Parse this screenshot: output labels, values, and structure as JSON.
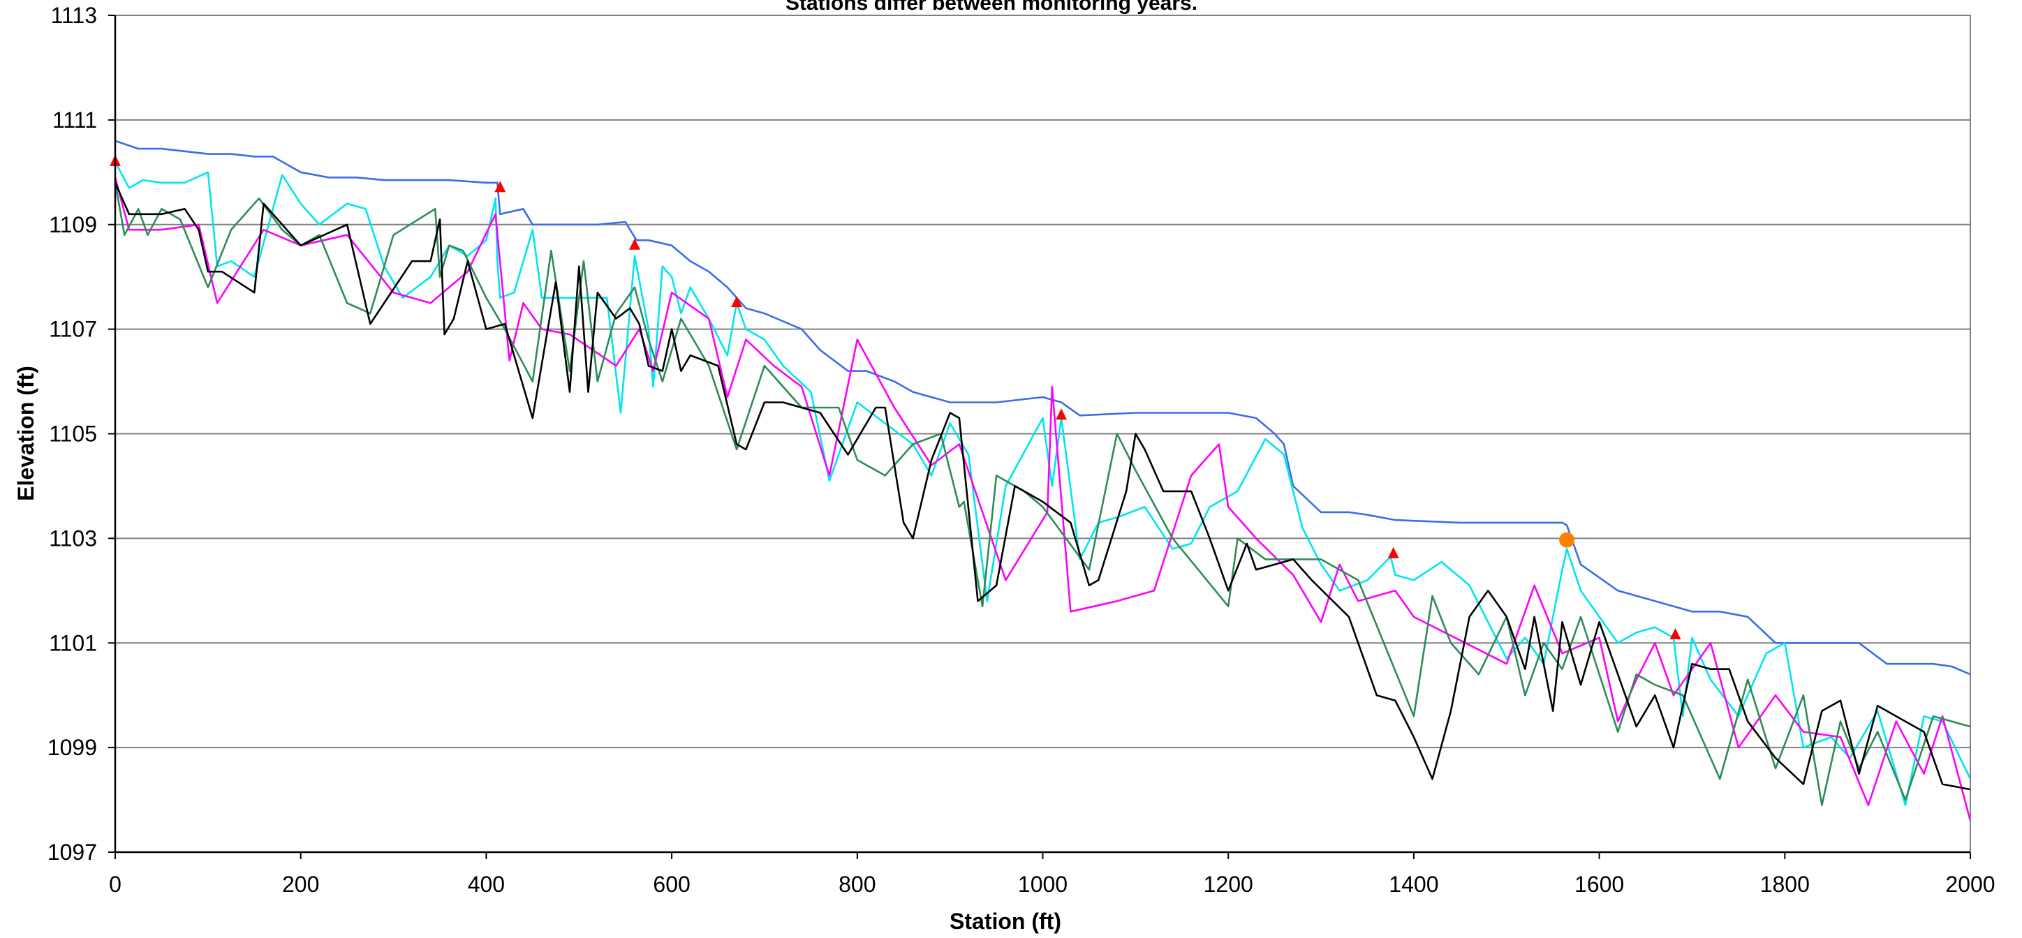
{
  "chart_data": {
    "type": "line",
    "title": "Stations differ between monitoring years.",
    "xlabel": "Station (ft)",
    "ylabel": "Elevation (ft)",
    "xlim": [
      0,
      2000
    ],
    "ylim": [
      1097,
      1113
    ],
    "xticks": [
      "0",
      "200",
      "400",
      "600",
      "800",
      "1000",
      "1200",
      "1400",
      "1600",
      "1800",
      "2000"
    ],
    "yticks": [
      "1097",
      "1099",
      "1101",
      "1103",
      "1105",
      "1107",
      "1109",
      "1111",
      "1113"
    ],
    "grid": "horizontal",
    "legend": "none",
    "colors": {
      "blue": "#3a6ee8",
      "cyan": "#00e5ee",
      "magenta": "#ff00ff",
      "green": "#2e8b57",
      "black": "#000000",
      "triangle": "#ff0000",
      "circle": "#ff7f00",
      "grid": "#808080"
    },
    "series": [
      {
        "color_key": "blue",
        "x": [
          0,
          25,
          50,
          75,
          100,
          125,
          150,
          170,
          180,
          200,
          230,
          260,
          290,
          330,
          360,
          400,
          412,
          415,
          440,
          450,
          470,
          520,
          550,
          562,
          575,
          600,
          620,
          640,
          660,
          680,
          700,
          740,
          750,
          760,
          790,
          810,
          840,
          860,
          880,
          900,
          950,
          1000,
          1020,
          1040,
          1100,
          1150,
          1200,
          1230,
          1250,
          1260,
          1270,
          1300,
          1330,
          1350,
          1380,
          1450,
          1500,
          1520,
          1560,
          1565,
          1580,
          1620,
          1640,
          1660,
          1680,
          1700,
          1730,
          1760,
          1790,
          1800,
          1820,
          1850,
          1880,
          1910,
          1930,
          1960,
          1980,
          2000
        ],
        "y": [
          1110.6,
          1110.45,
          1110.45,
          1110.4,
          1110.35,
          1110.35,
          1110.3,
          1110.3,
          1110.2,
          1110.0,
          1109.9,
          1109.9,
          1109.85,
          1109.85,
          1109.85,
          1109.8,
          1109.8,
          1109.2,
          1109.3,
          1109.0,
          1109.0,
          1109.0,
          1109.05,
          1108.7,
          1108.7,
          1108.6,
          1108.3,
          1108.1,
          1107.8,
          1107.4,
          1107.3,
          1107.0,
          1106.8,
          1106.6,
          1106.2,
          1106.2,
          1106.0,
          1105.8,
          1105.7,
          1105.6,
          1105.6,
          1105.7,
          1105.6,
          1105.35,
          1105.4,
          1105.4,
          1105.4,
          1105.3,
          1105.0,
          1104.8,
          1104.0,
          1103.5,
          1103.5,
          1103.45,
          1103.35,
          1103.3,
          1103.3,
          1103.3,
          1103.3,
          1103.25,
          1102.5,
          1102.0,
          1101.9,
          1101.8,
          1101.7,
          1101.6,
          1101.6,
          1101.5,
          1101.0,
          1101.0,
          1101.0,
          1101.0,
          1101.0,
          1100.6,
          1100.6,
          1100.6,
          1100.55,
          1100.4
        ]
      },
      {
        "color_key": "cyan",
        "x": [
          0,
          15,
          30,
          50,
          75,
          100,
          110,
          125,
          150,
          180,
          200,
          220,
          250,
          270,
          290,
          310,
          340,
          360,
          380,
          400,
          410,
          412,
          415,
          430,
          450,
          460,
          470,
          490,
          510,
          530,
          545,
          560,
          575,
          580,
          590,
          600,
          610,
          620,
          640,
          660,
          670,
          680,
          700,
          720,
          750,
          770,
          800,
          830,
          860,
          880,
          900,
          920,
          940,
          960,
          1000,
          1010,
          1020,
          1040,
          1060,
          1080,
          1110,
          1140,
          1160,
          1180,
          1210,
          1240,
          1260,
          1280,
          1300,
          1320,
          1350,
          1375,
          1380,
          1400,
          1430,
          1460,
          1500,
          1520,
          1540,
          1560,
          1565,
          1580,
          1600,
          1620,
          1640,
          1660,
          1680,
          1690,
          1700,
          1720,
          1750,
          1780,
          1800,
          1820,
          1850,
          1870,
          1900,
          1930,
          1950,
          1970,
          2000
        ],
        "y": [
          1110.2,
          1109.7,
          1109.85,
          1109.8,
          1109.8,
          1110.0,
          1108.2,
          1108.3,
          1108.0,
          1109.95,
          1109.4,
          1109.0,
          1109.4,
          1109.3,
          1108.2,
          1107.6,
          1108.0,
          1108.6,
          1108.4,
          1108.7,
          1109.5,
          1108.3,
          1107.6,
          1107.7,
          1108.9,
          1107.6,
          1107.6,
          1107.6,
          1107.6,
          1107.6,
          1105.4,
          1108.4,
          1107.0,
          1105.9,
          1108.2,
          1108.0,
          1107.3,
          1107.8,
          1107.2,
          1106.5,
          1107.5,
          1107.0,
          1106.8,
          1106.3,
          1105.8,
          1104.1,
          1105.6,
          1105.2,
          1104.8,
          1104.2,
          1105.2,
          1104.6,
          1101.8,
          1104.0,
          1105.3,
          1104.0,
          1105.3,
          1102.6,
          1103.3,
          1103.4,
          1103.6,
          1102.8,
          1102.9,
          1103.6,
          1103.9,
          1104.9,
          1104.6,
          1103.2,
          1102.5,
          1102.0,
          1102.2,
          1102.65,
          1102.3,
          1102.2,
          1102.55,
          1102.1,
          1100.7,
          1101.1,
          1100.6,
          1102.4,
          1102.8,
          1102.0,
          1101.5,
          1101.0,
          1101.2,
          1101.3,
          1101.1,
          1099.6,
          1101.1,
          1100.3,
          1099.6,
          1100.8,
          1101.0,
          1099.0,
          1099.2,
          1098.8,
          1099.7,
          1097.9,
          1099.6,
          1099.5,
          1098.4
        ]
      },
      {
        "color_key": "magenta",
        "x": [
          0,
          15,
          50,
          90,
          110,
          160,
          200,
          250,
          300,
          340,
          380,
          410,
          425,
          440,
          460,
          490,
          540,
          565,
          580,
          600,
          640,
          660,
          680,
          710,
          740,
          770,
          800,
          840,
          880,
          910,
          960,
          1005,
          1010,
          1030,
          1080,
          1120,
          1160,
          1190,
          1200,
          1230,
          1270,
          1300,
          1320,
          1340,
          1380,
          1400,
          1500,
          1530,
          1560,
          1600,
          1620,
          1640,
          1660,
          1680,
          1720,
          1750,
          1790,
          1820,
          1860,
          1890,
          1920,
          1950,
          1970,
          2000
        ],
        "y": [
          1109.9,
          1108.9,
          1108.9,
          1109.0,
          1107.5,
          1108.9,
          1108.6,
          1108.8,
          1107.7,
          1107.5,
          1108.1,
          1109.2,
          1106.4,
          1107.5,
          1107.0,
          1106.9,
          1106.3,
          1107.0,
          1106.2,
          1107.7,
          1107.2,
          1105.7,
          1106.8,
          1106.3,
          1105.9,
          1104.2,
          1106.8,
          1105.5,
          1104.4,
          1104.8,
          1102.2,
          1103.5,
          1105.9,
          1101.6,
          1101.8,
          1102.0,
          1104.2,
          1104.8,
          1103.6,
          1103.0,
          1102.3,
          1101.4,
          1102.5,
          1101.8,
          1102.0,
          1101.5,
          1100.6,
          1102.1,
          1100.8,
          1101.1,
          1099.5,
          1100.3,
          1101.0,
          1100.0,
          1101.0,
          1099.0,
          1100.0,
          1099.3,
          1099.2,
          1097.9,
          1099.5,
          1098.5,
          1099.6,
          1097.6
        ]
      },
      {
        "color_key": "green",
        "x": [
          0,
          10,
          25,
          35,
          50,
          70,
          100,
          125,
          155,
          180,
          200,
          220,
          250,
          275,
          300,
          345,
          350,
          360,
          375,
          400,
          420,
          450,
          470,
          490,
          505,
          520,
          540,
          560,
          575,
          590,
          610,
          640,
          670,
          700,
          740,
          780,
          800,
          830,
          860,
          890,
          910,
          915,
          935,
          950,
          980,
          1000,
          1050,
          1080,
          1100,
          1140,
          1200,
          1210,
          1240,
          1300,
          1340,
          1400,
          1420,
          1440,
          1470,
          1500,
          1520,
          1540,
          1560,
          1580,
          1620,
          1640,
          1660,
          1690,
          1730,
          1760,
          1790,
          1820,
          1840,
          1860,
          1880,
          1900,
          1930,
          1960,
          2000
        ],
        "y": [
          1109.8,
          1108.8,
          1109.3,
          1108.8,
          1109.3,
          1109.1,
          1107.8,
          1108.9,
          1109.5,
          1108.9,
          1108.6,
          1108.8,
          1107.5,
          1107.3,
          1108.8,
          1109.3,
          1108.0,
          1108.6,
          1108.5,
          1107.6,
          1107.0,
          1106.0,
          1108.5,
          1106.2,
          1108.3,
          1106.0,
          1107.3,
          1107.8,
          1106.8,
          1106.0,
          1107.2,
          1106.3,
          1104.7,
          1106.3,
          1105.5,
          1105.5,
          1104.5,
          1104.2,
          1104.8,
          1105.0,
          1103.6,
          1103.7,
          1101.7,
          1104.2,
          1103.9,
          1103.6,
          1102.4,
          1105.0,
          1104.3,
          1103.0,
          1101.7,
          1103.0,
          1102.6,
          1102.6,
          1102.2,
          1099.6,
          1101.9,
          1101.0,
          1100.4,
          1101.5,
          1100.0,
          1101.0,
          1100.5,
          1101.5,
          1099.3,
          1100.4,
          1100.2,
          1100.0,
          1098.4,
          1100.3,
          1098.6,
          1100.0,
          1097.9,
          1099.5,
          1098.6,
          1099.3,
          1098.0,
          1099.6,
          1099.4
        ]
      },
      {
        "color_key": "black",
        "x": [
          0,
          15,
          50,
          75,
          90,
          100,
          115,
          150,
          160,
          200,
          250,
          275,
          320,
          340,
          350,
          355,
          365,
          380,
          400,
          420,
          450,
          475,
          490,
          500,
          510,
          520,
          540,
          555,
          565,
          575,
          590,
          600,
          610,
          620,
          650,
          670,
          680,
          700,
          720,
          760,
          790,
          820,
          830,
          850,
          860,
          880,
          900,
          910,
          930,
          950,
          970,
          1000,
          1030,
          1050,
          1060,
          1090,
          1100,
          1110,
          1130,
          1160,
          1180,
          1200,
          1220,
          1230,
          1270,
          1290,
          1330,
          1360,
          1380,
          1400,
          1420,
          1440,
          1460,
          1480,
          1500,
          1520,
          1530,
          1550,
          1560,
          1580,
          1600,
          1620,
          1640,
          1660,
          1680,
          1700,
          1720,
          1740,
          1760,
          1790,
          1820,
          1840,
          1860,
          1880,
          1900,
          1920,
          1950,
          1970,
          2000
        ],
        "y": [
          1109.8,
          1109.2,
          1109.2,
          1109.3,
          1108.9,
          1108.1,
          1108.1,
          1107.7,
          1109.4,
          1108.6,
          1109.0,
          1107.1,
          1108.3,
          1108.3,
          1109.1,
          1106.9,
          1107.2,
          1108.3,
          1107.0,
          1107.1,
          1105.3,
          1107.9,
          1105.8,
          1108.2,
          1105.8,
          1107.7,
          1107.2,
          1107.4,
          1107.1,
          1106.3,
          1106.2,
          1107.0,
          1106.2,
          1106.5,
          1106.3,
          1104.8,
          1104.7,
          1105.6,
          1105.6,
          1105.4,
          1104.6,
          1105.5,
          1105.5,
          1103.3,
          1103.0,
          1104.5,
          1105.4,
          1105.3,
          1101.8,
          1102.1,
          1104.0,
          1103.7,
          1103.3,
          1102.1,
          1102.2,
          1103.9,
          1105.0,
          1104.7,
          1103.9,
          1103.9,
          1103.0,
          1102.0,
          1102.9,
          1102.4,
          1102.6,
          1102.2,
          1101.5,
          1100.0,
          1099.9,
          1099.2,
          1098.4,
          1099.7,
          1101.5,
          1102.0,
          1101.5,
          1100.5,
          1101.5,
          1099.7,
          1101.4,
          1100.2,
          1101.4,
          1100.4,
          1099.4,
          1100.0,
          1099.0,
          1100.6,
          1100.5,
          1100.5,
          1099.5,
          1098.8,
          1098.3,
          1099.7,
          1099.9,
          1098.5,
          1099.8,
          1099.6,
          1099.3,
          1098.3,
          1098.2
        ]
      }
    ],
    "markers": {
      "triangles": [
        {
          "x": 0,
          "y": 1110.2
        },
        {
          "x": 415,
          "y": 1109.7
        },
        {
          "x": 560,
          "y": 1108.6
        },
        {
          "x": 670,
          "y": 1107.5
        },
        {
          "x": 1020,
          "y": 1105.35
        },
        {
          "x": 1378,
          "y": 1102.7
        },
        {
          "x": 1682,
          "y": 1101.15
        }
      ],
      "circles": [
        {
          "x": 1565,
          "y": 1102.97
        }
      ]
    }
  }
}
